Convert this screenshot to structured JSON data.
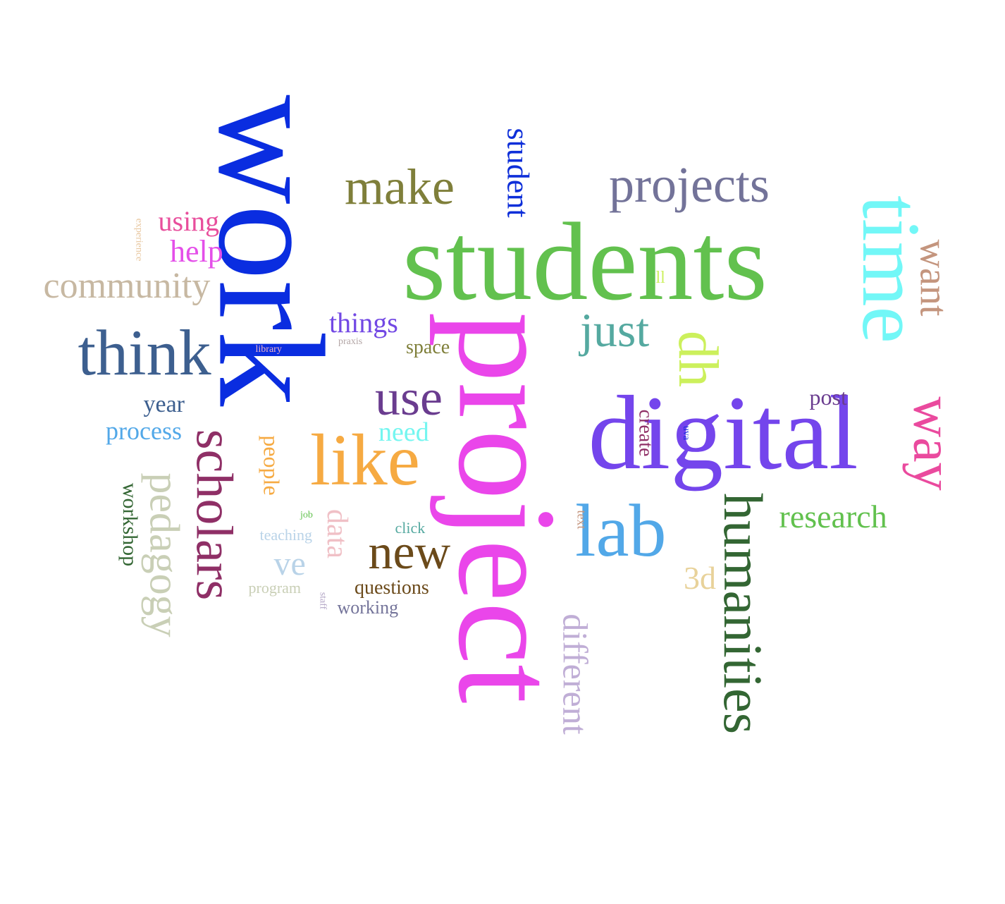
{
  "cloud": {
    "words": [
      {
        "text": "work",
        "color": "#0a2de0"
      },
      {
        "text": "students",
        "color": "#62c14e"
      },
      {
        "text": "project",
        "color": "#ea46ea"
      },
      {
        "text": "digital",
        "color": "#7445ec"
      },
      {
        "text": "time",
        "color": "#72f7f7"
      },
      {
        "text": "make",
        "color": "#7f7f3a"
      },
      {
        "text": "projects",
        "color": "#737399"
      },
      {
        "text": "student",
        "color": "#0e2fd9"
      },
      {
        "text": "want",
        "color": "#c4957e"
      },
      {
        "text": "way",
        "color": "#ea4a9e"
      },
      {
        "text": "dh",
        "color": "#ccf05c"
      },
      {
        "text": "just",
        "color": "#55a9a0"
      },
      {
        "text": "ll",
        "color": "#ccf05c"
      },
      {
        "text": "think",
        "color": "#3d5f8f"
      },
      {
        "text": "community",
        "color": "#c7b8a2"
      },
      {
        "text": "using",
        "color": "#e84e9c"
      },
      {
        "text": "help",
        "color": "#e44fe9"
      },
      {
        "text": "experience",
        "color": "#e8c7a0"
      },
      {
        "text": "things",
        "color": "#7248e4"
      },
      {
        "text": "library",
        "color": "#f0b4c6"
      },
      {
        "text": "praxis",
        "color": "#b3a6a6"
      },
      {
        "text": "space",
        "color": "#7f7f3a"
      },
      {
        "text": "use",
        "color": "#6a3c8f"
      },
      {
        "text": "like",
        "color": "#f6aa42"
      },
      {
        "text": "need",
        "color": "#74f6f0"
      },
      {
        "text": "year",
        "color": "#3d5f8f"
      },
      {
        "text": "process",
        "color": "#52a8e8"
      },
      {
        "text": "scholars",
        "color": "#8f2f66"
      },
      {
        "text": "pedagogy",
        "color": "#c9cfb6"
      },
      {
        "text": "workshop",
        "color": "#336633"
      },
      {
        "text": "people",
        "color": "#f6aa42"
      },
      {
        "text": "data",
        "color": "#f0c0c6"
      },
      {
        "text": "job",
        "color": "#62c14e"
      },
      {
        "text": "teaching",
        "color": "#b9d3e8"
      },
      {
        "text": "click",
        "color": "#55a9a0"
      },
      {
        "text": "new",
        "color": "#6b4a1a"
      },
      {
        "text": "ve",
        "color": "#b9d3e8"
      },
      {
        "text": "program",
        "color": "#c9cfb6"
      },
      {
        "text": "staff",
        "color": "#b3a6c6"
      },
      {
        "text": "questions",
        "color": "#6b4a1a"
      },
      {
        "text": "working",
        "color": "#737399"
      },
      {
        "text": "lab",
        "color": "#52a8e8"
      },
      {
        "text": "different",
        "color": "#c0aed6"
      },
      {
        "text": "text",
        "color": "#c4957e"
      },
      {
        "text": "create",
        "color": "#8f2f66"
      },
      {
        "text": "uva",
        "color": "#1a2ee0"
      },
      {
        "text": "post",
        "color": "#6a3c8f"
      },
      {
        "text": "humanities",
        "color": "#336633"
      },
      {
        "text": "research",
        "color": "#62c14e"
      },
      {
        "text": "3d",
        "color": "#e8d29a"
      }
    ]
  }
}
